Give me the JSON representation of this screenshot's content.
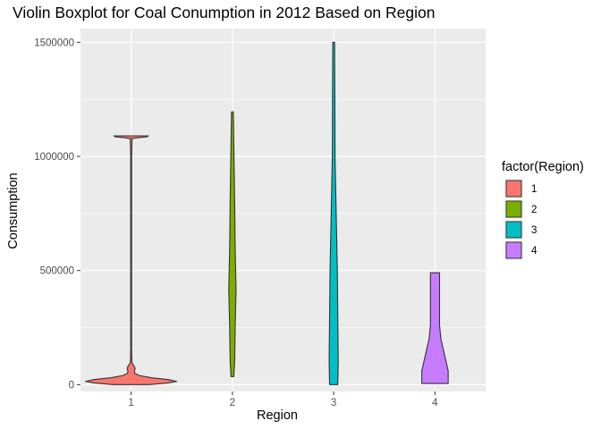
{
  "chart_data": {
    "type": "violin",
    "title": "Violin Boxplot for Coal Conumption in 2012 Based on Region",
    "xlabel": "Region",
    "ylabel": "Consumption",
    "categories": [
      "1",
      "2",
      "3",
      "4"
    ],
    "y_ticks": [
      0,
      500000,
      1000000,
      1500000
    ],
    "y_tick_labels": [
      "0",
      "500000",
      "1000000",
      "1500000"
    ],
    "ylim": [
      -30000,
      1560000
    ],
    "grid": true,
    "legend": {
      "title": "factor(Region)",
      "position": "right",
      "entries": [
        "1",
        "2",
        "3",
        "4"
      ]
    },
    "colors": {
      "1": "#F8766D",
      "2": "#7CAE00",
      "3": "#00BFC4",
      "4": "#C77CFF",
      "panel": "#EBEBEB",
      "grid_major": "#FFFFFF",
      "outline": "#333333"
    },
    "series": [
      {
        "name": "1",
        "min": 0,
        "max": 1090000,
        "density": [
          [
            0,
            0.4
          ],
          [
            7000,
            0.8
          ],
          [
            14000,
            1.0
          ],
          [
            22000,
            0.82
          ],
          [
            30000,
            0.45
          ],
          [
            40000,
            0.18
          ],
          [
            50000,
            0.08
          ],
          [
            60000,
            0.07
          ],
          [
            70000,
            0.09
          ],
          [
            80000,
            0.07
          ],
          [
            95000,
            0.02
          ],
          [
            150000,
            0.01
          ],
          [
            1000000,
            0.01
          ],
          [
            1078000,
            0.02
          ],
          [
            1082000,
            0.15
          ],
          [
            1086000,
            0.35
          ],
          [
            1090000,
            0.38
          ]
        ]
      },
      {
        "name": "2",
        "min": 35000,
        "max": 1195000,
        "density": [
          [
            35000,
            0.03
          ],
          [
            100000,
            0.05
          ],
          [
            250000,
            0.06
          ],
          [
            330000,
            0.07
          ],
          [
            420000,
            0.08
          ],
          [
            600000,
            0.06
          ],
          [
            800000,
            0.05
          ],
          [
            1000000,
            0.035
          ],
          [
            1195000,
            0.02
          ]
        ]
      },
      {
        "name": "3",
        "min": 0,
        "max": 1500000,
        "density": [
          [
            0,
            0.09
          ],
          [
            100000,
            0.1
          ],
          [
            300000,
            0.09
          ],
          [
            500000,
            0.08
          ],
          [
            700000,
            0.06
          ],
          [
            1000000,
            0.03
          ],
          [
            1300000,
            0.025
          ],
          [
            1500000,
            0.02
          ]
        ]
      },
      {
        "name": "4",
        "min": 5000,
        "max": 490000,
        "density": [
          [
            5000,
            0.29
          ],
          [
            60000,
            0.29
          ],
          [
            130000,
            0.21
          ],
          [
            200000,
            0.13
          ],
          [
            260000,
            0.1
          ],
          [
            350000,
            0.1
          ],
          [
            420000,
            0.1
          ],
          [
            490000,
            0.1
          ]
        ]
      }
    ]
  }
}
